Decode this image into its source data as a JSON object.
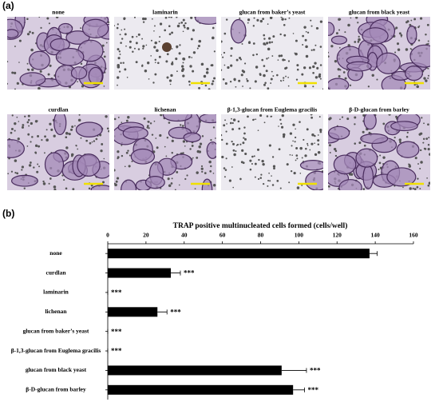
{
  "panels": {
    "a": "(a)",
    "b": "(b)"
  },
  "images": [
    {
      "label": "none"
    },
    {
      "label": "laminarin"
    },
    {
      "label": "glucan from baker’s yeast"
    },
    {
      "label": "glucan from black yeast"
    },
    {
      "label": "curdlan"
    },
    {
      "label": "lichenan"
    },
    {
      "label": "β-1,3-glucan from Euglema gracilis"
    },
    {
      "label": "β-D-glucan from barley"
    }
  ],
  "chart_data": {
    "type": "bar",
    "orientation": "horizontal",
    "title": "TRAP positive multinucleated cells formed (cells/well)",
    "categories": [
      "none",
      "curdlan",
      "laminarin",
      "lichenan",
      "glucan from baker’s yeast",
      "β-1,3-glucan from Euglema gracilis",
      "glucan from black yeast",
      "β-D-glucan from barley"
    ],
    "values": [
      137,
      33,
      0,
      26,
      0,
      0,
      91,
      97
    ],
    "errors": [
      4,
      5,
      0,
      5,
      0,
      0,
      13,
      6
    ],
    "significance": [
      null,
      "***",
      "***",
      "***",
      "***",
      "***",
      "***",
      "***"
    ],
    "color": "#000000",
    "xlim": [
      0,
      160
    ],
    "xticks": [
      0,
      20,
      40,
      60,
      80,
      100,
      120,
      140,
      160
    ]
  }
}
